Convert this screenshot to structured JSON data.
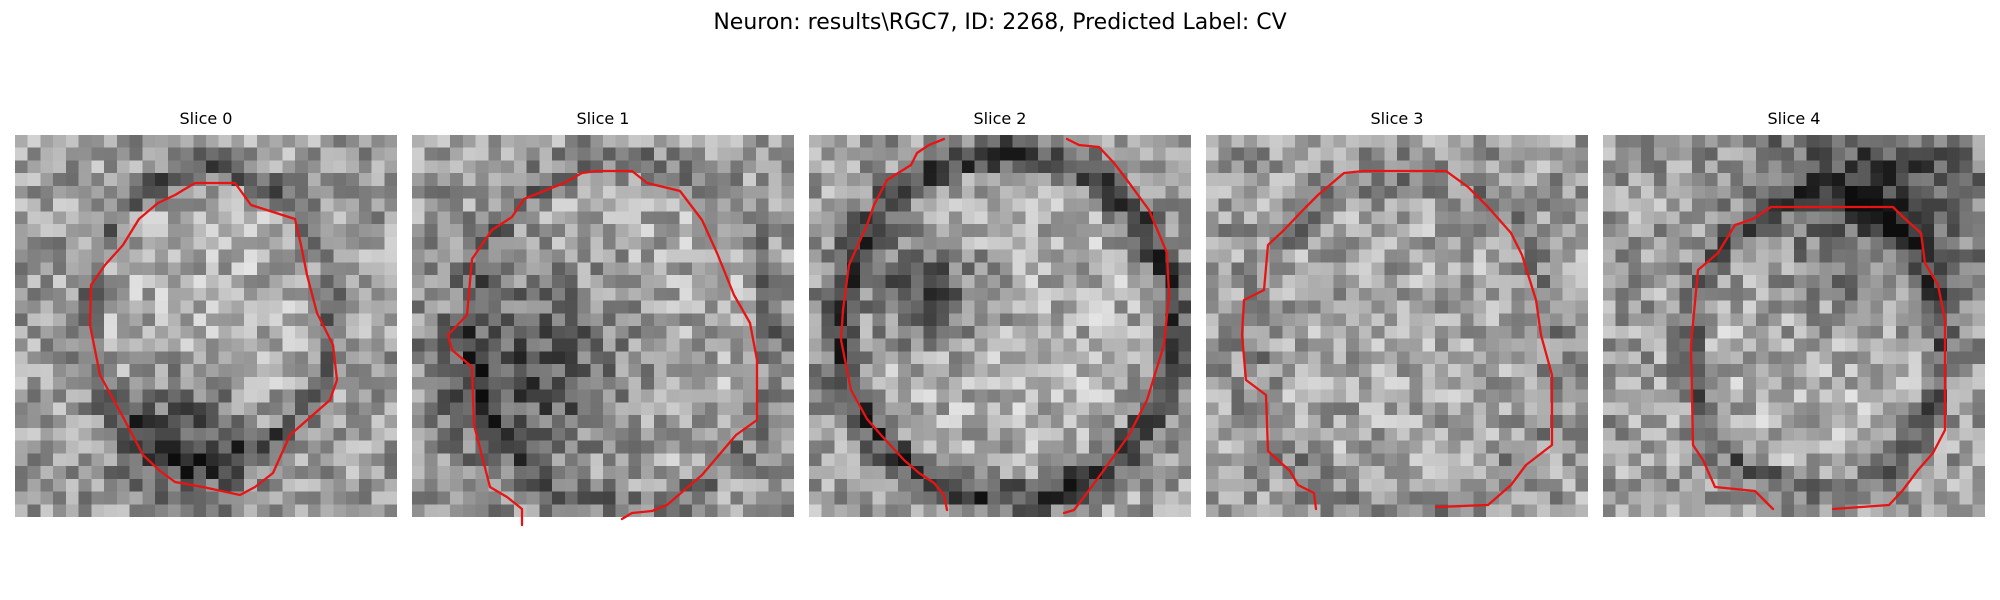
{
  "figure": {
    "title": "Neuron: results\\RGC7, ID: 2268, Predicted Label: CV",
    "contour_color": "#e81414"
  },
  "panels": [
    {
      "title": "Slice 0",
      "center": [
        0.51,
        0.47
      ],
      "radii": [
        0.32,
        0.38
      ],
      "ring_dark": 0.55,
      "inner_bright": 0.55,
      "dark_blob": [
        0.45,
        0.8,
        0.12
      ]
    },
    {
      "title": "Slice 1",
      "center": [
        0.55,
        0.52
      ],
      "radii": [
        0.4,
        0.45
      ],
      "ring_dark": 0.35,
      "inner_bright": 0.45,
      "dark_blob": [
        0.32,
        0.62,
        0.18
      ]
    },
    {
      "title": "Slice 2",
      "center": [
        0.52,
        0.5
      ],
      "radii": [
        0.44,
        0.45
      ],
      "ring_dark": 0.85,
      "inner_bright": 0.55,
      "dark_blob": [
        0.3,
        0.4,
        0.1
      ]
    },
    {
      "title": "Slice 3",
      "center": [
        0.52,
        0.55
      ],
      "radii": [
        0.4,
        0.44
      ],
      "ring_dark": 0.25,
      "inner_bright": 0.25,
      "dark_blob": [
        0.5,
        0.6,
        0.0
      ]
    },
    {
      "title": "Slice 4",
      "center": [
        0.56,
        0.55
      ],
      "radii": [
        0.33,
        0.38
      ],
      "ring_dark": 0.55,
      "inner_bright": 0.6,
      "dark_blob": [
        0.7,
        0.15,
        0.2
      ]
    }
  ]
}
